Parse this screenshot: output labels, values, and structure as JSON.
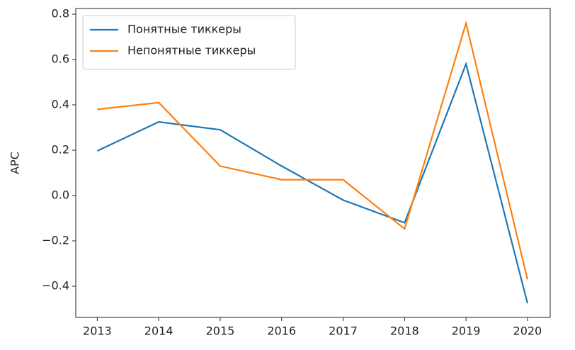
{
  "chart_data": {
    "type": "line",
    "ylabel": "APC",
    "x": [
      2013,
      2014,
      2015,
      2016,
      2017,
      2018,
      2019,
      2020
    ],
    "series": [
      {
        "name": "Понятные тиккеры",
        "color": "#1f77b4",
        "values": [
          0.197,
          0.325,
          0.29,
          0.13,
          -0.02,
          -0.12,
          0.58,
          -0.475
        ]
      },
      {
        "name": "Непонятные тиккеры",
        "color": "#ff7f0e",
        "values": [
          0.38,
          0.41,
          0.13,
          0.07,
          0.07,
          -0.147,
          0.76,
          -0.37
        ]
      }
    ],
    "xlim": [
      2012.65,
      2020.37
    ],
    "xticks": [
      2013,
      2014,
      2015,
      2016,
      2017,
      2018,
      2019,
      2020
    ],
    "ylim": [
      -0.5375,
      0.825
    ],
    "yticks": [
      {
        "value": -0.4,
        "label": "−0.4"
      },
      {
        "value": -0.2,
        "label": "−0.2"
      },
      {
        "value": 0,
        "label": "0.0"
      },
      {
        "value": 0.2,
        "label": "0.2"
      },
      {
        "value": 0.4,
        "label": "0.4"
      },
      {
        "value": 0.6,
        "label": "0.6"
      },
      {
        "value": 0.8,
        "label": "0.8"
      }
    ],
    "legend": "upper left"
  }
}
